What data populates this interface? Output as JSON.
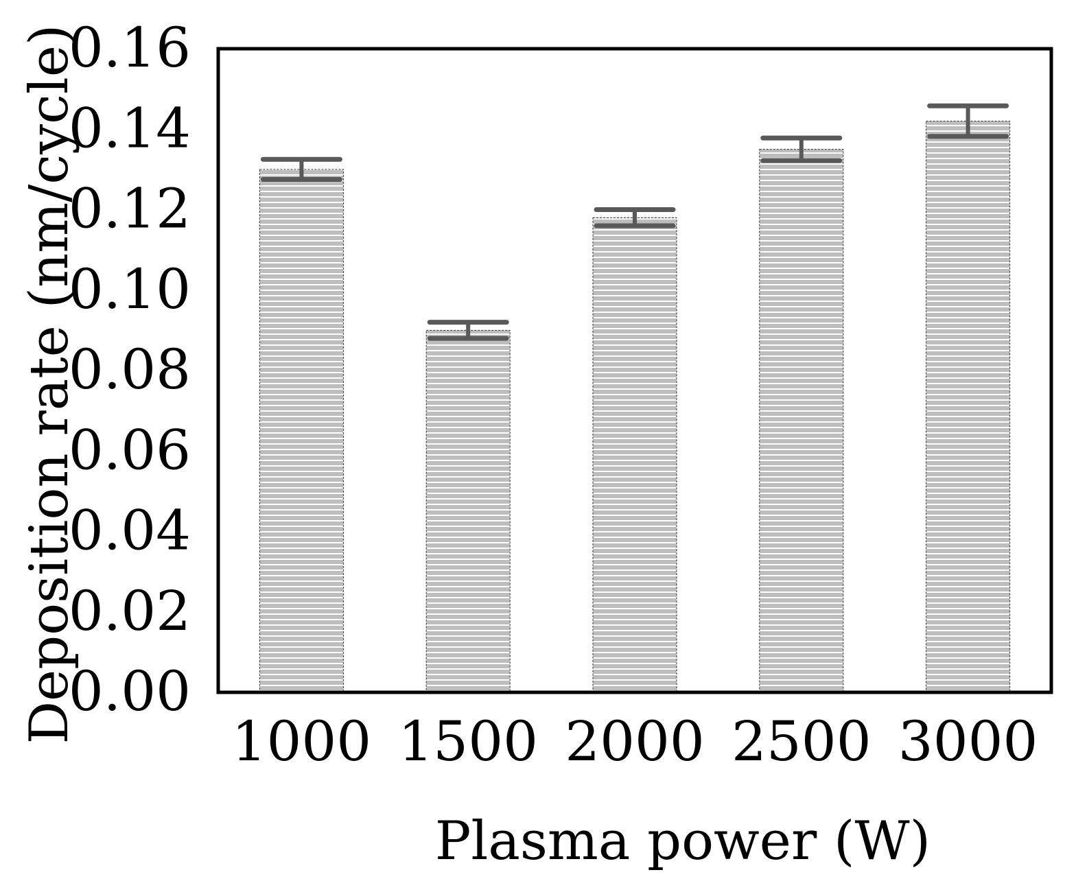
{
  "chart_data": {
    "type": "bar",
    "title": "",
    "xlabel": "Plasma power (W)",
    "ylabel": "Deposition rate (nm/cycle)",
    "categories": [
      "1000",
      "1500",
      "2000",
      "2500",
      "3000"
    ],
    "values": [
      0.13,
      0.09,
      0.118,
      0.135,
      0.142
    ],
    "errors": [
      0.0025,
      0.002,
      0.002,
      0.0028,
      0.0038
    ],
    "ylim": [
      0,
      0.16
    ],
    "yticks": [
      "0.00",
      "0.02",
      "0.04",
      "0.06",
      "0.08",
      "0.10",
      "0.12",
      "0.14",
      "0.16"
    ],
    "grid": false,
    "legend": "none",
    "colors": {
      "bar_fill": "#bdbdbd",
      "bar_stripe": "#ffffff",
      "bar_edge": "#333333",
      "error_bar": "#595959",
      "axis": "#000000"
    }
  }
}
